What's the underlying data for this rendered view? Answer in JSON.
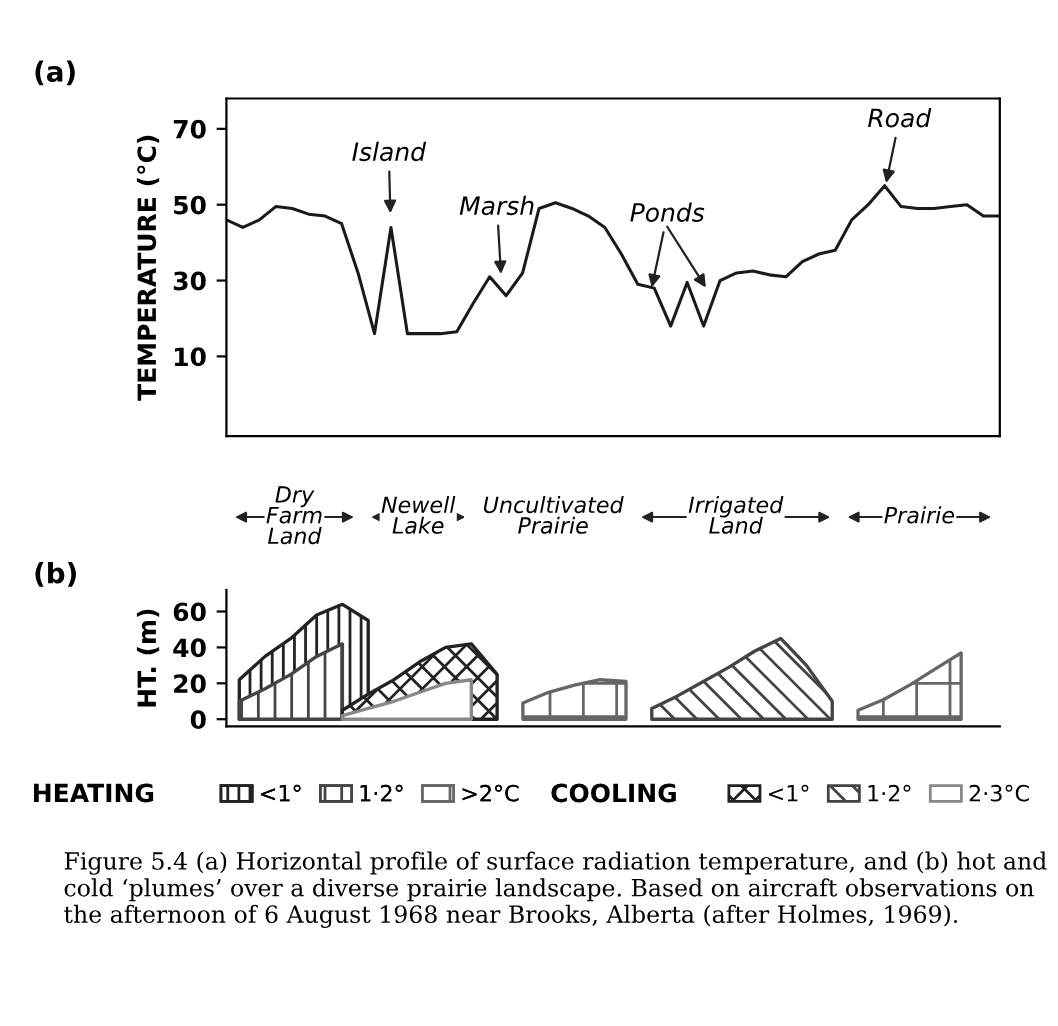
{
  "chart_data": [
    {
      "type": "line",
      "title": "(a)",
      "ylabel": "TEMPERATURE (°C)",
      "categories": [
        null,
        null,
        null,
        null,
        null,
        null,
        null,
        null,
        null,
        null,
        null,
        null,
        null,
        null,
        null,
        null,
        null,
        null,
        null,
        null,
        null,
        null,
        null,
        null,
        null,
        null,
        null,
        null,
        null,
        null,
        null,
        null,
        null,
        null,
        null,
        null,
        null,
        null,
        null,
        null,
        null,
        null,
        null,
        null,
        null,
        null,
        null,
        null
      ],
      "series": [
        {
          "color": "#1a1a1a",
          "values": [
            46,
            44,
            46,
            49.5,
            49,
            47.5,
            47,
            45,
            32,
            16,
            44,
            16,
            16,
            16,
            16.5,
            24,
            31,
            26,
            32,
            49,
            50.5,
            49,
            47,
            44,
            37,
            29,
            28,
            18,
            29.5,
            18,
            30,
            32,
            32.5,
            31.5,
            31,
            35,
            37,
            38,
            46,
            50,
            55,
            49.5,
            49,
            49,
            49.5,
            50,
            47,
            47
          ]
        }
      ],
      "ylim": [
        -11,
        78
      ],
      "yticks": [
        10,
        30,
        50,
        70
      ],
      "tick_labels": "y",
      "marker": "none",
      "line_style": "solid",
      "annotations": [
        "Island",
        "Marsh",
        "Ponds",
        "Road",
        "Dry\nFarm\nLand",
        "Newell\nLake",
        "Uncultivated\nPrairie",
        "Irrigated\nLand",
        "Prairie"
      ]
    },
    {
      "type": "area",
      "title": "(b)",
      "ylabel": "HT. (m)",
      "ylim": [
        -4,
        72
      ],
      "yticks": [
        0,
        20,
        40,
        60
      ],
      "tick_labels": "y",
      "legend": "bottom",
      "categories": [
        null,
        null,
        null,
        null,
        null,
        null,
        null,
        null,
        null,
        null,
        null,
        null,
        null,
        null,
        null,
        null,
        null,
        null,
        null,
        null,
        null,
        null,
        null,
        null,
        null,
        null,
        null,
        null,
        null,
        null
      ],
      "series": [
        {
          "name": "<1°",
          "color": "#222222",
          "values": [
            22,
            35,
            45,
            58,
            64,
            55,
            null,
            null,
            null,
            null,
            null,
            null,
            null,
            null,
            null,
            null,
            null,
            null,
            null,
            null,
            null,
            null,
            null,
            null,
            null,
            null,
            null,
            null,
            null,
            null
          ]
        },
        {
          "name": "1·2°",
          "color": "#444444",
          "values": [
            10,
            17,
            25,
            35,
            42,
            null,
            null,
            null,
            null,
            null,
            null,
            null,
            null,
            null,
            null,
            null,
            null,
            null,
            null,
            null,
            null,
            null,
            null,
            null,
            null,
            null,
            null,
            null,
            null,
            null
          ]
        },
        {
          "name": ">2°C",
          "color": "#666666",
          "values": [
            null,
            null,
            null,
            null,
            null,
            null,
            null,
            null,
            null,
            null,
            null,
            9,
            15,
            19,
            22,
            21,
            null,
            null,
            null,
            null,
            null,
            null,
            null,
            null,
            5,
            11,
            19,
            28,
            37,
            null
          ]
        },
        {
          "name": "<1°",
          "color": "#222222",
          "values": [
            null,
            null,
            null,
            null,
            5,
            14,
            22,
            32,
            40,
            42,
            25,
            null,
            null,
            null,
            null,
            null,
            null,
            null,
            null,
            null,
            null,
            null,
            null,
            null,
            null,
            null,
            null,
            null,
            null,
            null
          ]
        },
        {
          "name": "1·2°",
          "color": "#444444",
          "values": [
            null,
            null,
            null,
            null,
            null,
            null,
            null,
            null,
            null,
            null,
            null,
            null,
            null,
            null,
            null,
            null,
            6,
            13,
            21,
            29,
            38,
            45,
            30,
            10,
            null,
            null,
            null,
            null,
            null,
            null
          ]
        },
        {
          "name": "2·3°C",
          "color": "#888888",
          "values": [
            null,
            null,
            null,
            null,
            2,
            6,
            10,
            15,
            20,
            22,
            null,
            null,
            null,
            null,
            null,
            null,
            null,
            null,
            null,
            null,
            null,
            null,
            null,
            null,
            null,
            null,
            null,
            null,
            null,
            null
          ]
        }
      ],
      "annotations": [
        "HEATING",
        "COOLING",
        "Figure 5.4 (a) Horizontal profile of surface radiation temperature, and (b) hot and cold ‘plumes’ over a diverse prairie landscape. Based on aircraft observations on the afternoon of 6 August 1968 near Brooks, Alberta (after Holmes, 1969)."
      ]
    }
  ]
}
